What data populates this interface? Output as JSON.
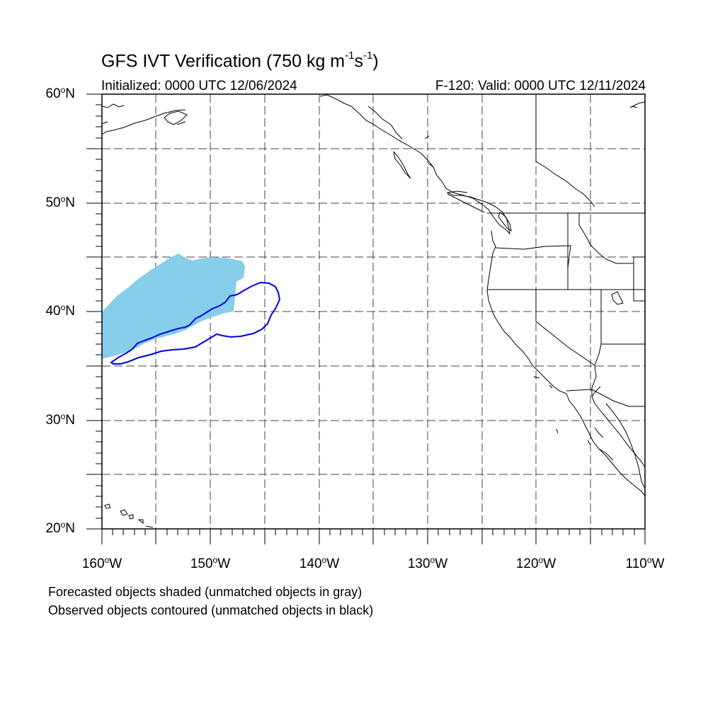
{
  "header": {
    "title_prefix": "GFS IVT Verification (750 kg m",
    "title_exp1": "-1",
    "title_mid": "s",
    "title_exp2": "-1",
    "title_suffix": ")",
    "initialized": "Initialized: 0000 UTC 12/06/2024",
    "valid": "F-120: Valid: 0000 UTC 12/11/2024"
  },
  "map": {
    "lat_labels": [
      "60",
      "50",
      "40",
      "30",
      "20"
    ],
    "lat_suffix": "N",
    "lon_labels": [
      "160",
      "150",
      "140",
      "130",
      "120",
      "110"
    ],
    "lon_suffix": "W",
    "extent": {
      "lon_min": -160,
      "lon_max": -110,
      "lat_min": 20,
      "lat_max": 60
    },
    "projection": "cylindrical-equidistant",
    "grid": true,
    "forecast_object_color": "#87ceeb",
    "observed_contour_color": "#0000dd",
    "coastline_color": "#000000"
  },
  "legend": {
    "line1": "Forecasted objects shaded (unmatched objects in gray)",
    "line2": "Observed objects contoured (unmatched objects in black)"
  }
}
